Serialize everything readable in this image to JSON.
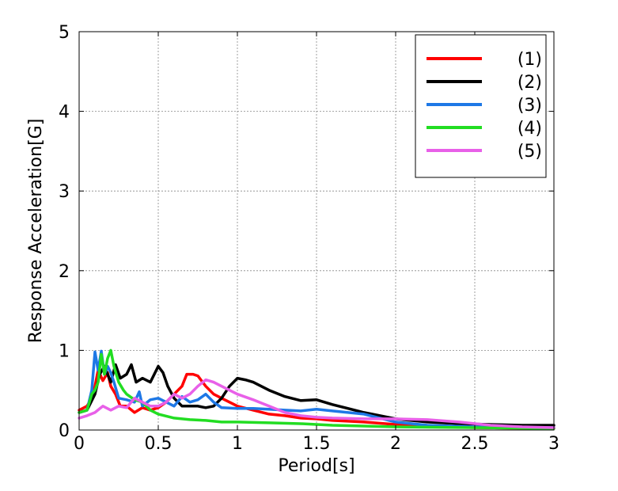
{
  "chart_data": {
    "type": "line",
    "title": "",
    "xlabel": "Period[s]",
    "ylabel": "Response Acceleration[G]",
    "xlim": [
      0,
      3
    ],
    "ylim": [
      0,
      5
    ],
    "xticks": [
      0,
      0.5,
      1,
      1.5,
      2,
      2.5,
      3
    ],
    "xtick_labels": [
      "0",
      "0.5",
      "1",
      "1.5",
      "2",
      "2.5",
      "3"
    ],
    "yticks": [
      0,
      1,
      2,
      3,
      4,
      5
    ],
    "ytick_labels": [
      "0",
      "1",
      "2",
      "3",
      "4",
      "5"
    ],
    "grid": true,
    "legend_position": "top-right",
    "series": [
      {
        "name": "(1)",
        "color": "#ff0000",
        "x": [
          0,
          0.05,
          0.08,
          0.1,
          0.12,
          0.15,
          0.18,
          0.2,
          0.23,
          0.26,
          0.3,
          0.35,
          0.4,
          0.45,
          0.5,
          0.55,
          0.6,
          0.65,
          0.68,
          0.72,
          0.75,
          0.8,
          0.85,
          0.9,
          0.95,
          1.0,
          1.1,
          1.2,
          1.3,
          1.4,
          1.5,
          1.6,
          1.8,
          2.0,
          2.2,
          2.5,
          3.0
        ],
        "y": [
          0.25,
          0.3,
          0.4,
          0.55,
          0.75,
          0.62,
          0.72,
          0.55,
          0.45,
          0.3,
          0.3,
          0.22,
          0.28,
          0.25,
          0.28,
          0.35,
          0.45,
          0.55,
          0.7,
          0.7,
          0.68,
          0.55,
          0.45,
          0.4,
          0.35,
          0.3,
          0.25,
          0.2,
          0.18,
          0.15,
          0.14,
          0.12,
          0.1,
          0.07,
          0.05,
          0.03,
          0.02
        ]
      },
      {
        "name": "(2)",
        "color": "#000000",
        "x": [
          0,
          0.05,
          0.1,
          0.13,
          0.16,
          0.2,
          0.23,
          0.26,
          0.3,
          0.33,
          0.36,
          0.4,
          0.45,
          0.5,
          0.53,
          0.56,
          0.6,
          0.65,
          0.7,
          0.75,
          0.8,
          0.85,
          0.9,
          0.95,
          1.0,
          1.05,
          1.1,
          1.2,
          1.3,
          1.4,
          1.5,
          1.6,
          1.7,
          1.8,
          1.9,
          2.0,
          2.2,
          2.4,
          2.6,
          2.8,
          3.0
        ],
        "y": [
          0.22,
          0.25,
          0.45,
          0.7,
          0.8,
          0.6,
          0.82,
          0.65,
          0.7,
          0.82,
          0.6,
          0.65,
          0.6,
          0.8,
          0.72,
          0.55,
          0.4,
          0.3,
          0.3,
          0.3,
          0.28,
          0.3,
          0.4,
          0.55,
          0.65,
          0.63,
          0.6,
          0.5,
          0.42,
          0.37,
          0.38,
          0.32,
          0.27,
          0.22,
          0.18,
          0.14,
          0.1,
          0.08,
          0.07,
          0.06,
          0.06
        ]
      },
      {
        "name": "(3)",
        "color": "#1e78e6",
        "x": [
          0,
          0.05,
          0.08,
          0.1,
          0.12,
          0.14,
          0.16,
          0.18,
          0.2,
          0.22,
          0.25,
          0.3,
          0.35,
          0.38,
          0.4,
          0.45,
          0.5,
          0.55,
          0.6,
          0.65,
          0.7,
          0.75,
          0.8,
          0.85,
          0.9,
          1.0,
          1.1,
          1.2,
          1.3,
          1.4,
          1.5,
          1.6,
          1.7,
          1.8,
          1.9,
          2.0,
          2.2,
          2.5,
          3.0
        ],
        "y": [
          0.22,
          0.25,
          0.5,
          0.98,
          0.75,
          0.99,
          0.7,
          0.8,
          0.72,
          0.6,
          0.4,
          0.38,
          0.35,
          0.48,
          0.3,
          0.38,
          0.4,
          0.35,
          0.3,
          0.42,
          0.35,
          0.38,
          0.45,
          0.35,
          0.28,
          0.27,
          0.27,
          0.26,
          0.25,
          0.24,
          0.26,
          0.24,
          0.22,
          0.2,
          0.15,
          0.1,
          0.06,
          0.04,
          0.03
        ]
      },
      {
        "name": "(4)",
        "color": "#22dd22",
        "x": [
          0,
          0.05,
          0.08,
          0.1,
          0.12,
          0.14,
          0.16,
          0.18,
          0.2,
          0.22,
          0.25,
          0.28,
          0.3,
          0.35,
          0.4,
          0.45,
          0.5,
          0.6,
          0.7,
          0.8,
          0.9,
          1.0,
          1.2,
          1.4,
          1.6,
          1.8,
          2.0,
          2.5,
          3.0
        ],
        "y": [
          0.22,
          0.25,
          0.45,
          0.5,
          0.6,
          0.95,
          0.7,
          0.9,
          1.0,
          0.8,
          0.6,
          0.5,
          0.45,
          0.38,
          0.35,
          0.25,
          0.2,
          0.15,
          0.13,
          0.12,
          0.1,
          0.1,
          0.09,
          0.08,
          0.06,
          0.05,
          0.04,
          0.03,
          0.02
        ]
      },
      {
        "name": "(5)",
        "color": "#e860e8",
        "x": [
          0,
          0.05,
          0.1,
          0.15,
          0.2,
          0.25,
          0.3,
          0.35,
          0.4,
          0.45,
          0.5,
          0.55,
          0.6,
          0.65,
          0.7,
          0.75,
          0.8,
          0.85,
          0.9,
          0.95,
          1.0,
          1.1,
          1.2,
          1.3,
          1.4,
          1.5,
          1.6,
          1.8,
          2.0,
          2.2,
          2.4,
          2.6,
          2.8,
          3.0
        ],
        "y": [
          0.15,
          0.18,
          0.22,
          0.3,
          0.25,
          0.3,
          0.28,
          0.4,
          0.35,
          0.3,
          0.3,
          0.35,
          0.45,
          0.4,
          0.45,
          0.55,
          0.63,
          0.6,
          0.55,
          0.5,
          0.45,
          0.38,
          0.3,
          0.22,
          0.18,
          0.16,
          0.15,
          0.14,
          0.14,
          0.13,
          0.1,
          0.06,
          0.04,
          0.03
        ]
      }
    ]
  }
}
